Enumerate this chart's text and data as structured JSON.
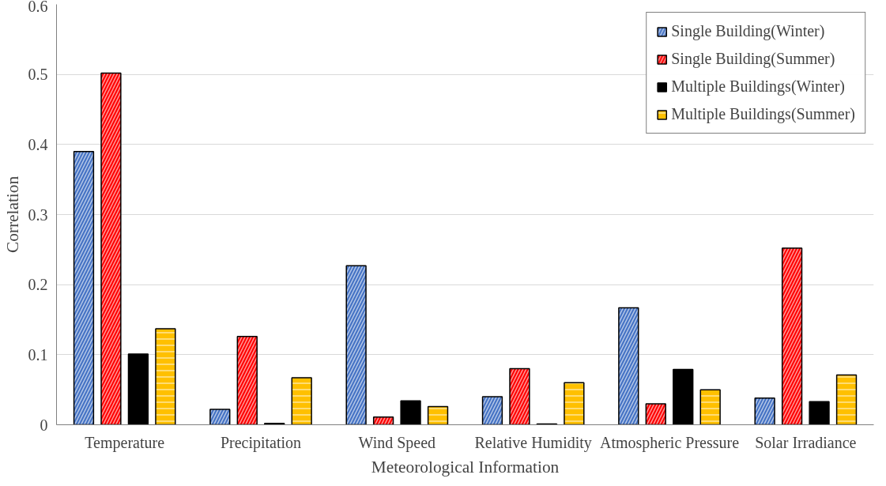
{
  "chart_data": {
    "type": "bar",
    "xlabel": "Meteorological Information",
    "ylabel": "Correlation",
    "categories": [
      "Temperature",
      "Precipitation",
      "Wind Speed",
      "Relative Humidity",
      "Atmospheric Pressure",
      "Solar Irradiance"
    ],
    "series": [
      {
        "name": "Single Building(Winter)",
        "color": "#4472c4",
        "values": [
          0.39,
          0.022,
          0.227,
          0.04,
          0.167,
          0.038
        ]
      },
      {
        "name": "Single Building(Summer)",
        "color": "#ff0000",
        "values": [
          0.502,
          0.126,
          0.011,
          0.08,
          0.03,
          0.252
        ]
      },
      {
        "name": "Multiple Buildings(Winter)",
        "color": "#000000",
        "values": [
          0.101,
          0.002,
          0.034,
          0.001,
          0.079,
          0.033
        ]
      },
      {
        "name": "Multiple Buildings(Summer)",
        "color": "#ffc000",
        "values": [
          0.137,
          0.067,
          0.026,
          0.06,
          0.05,
          0.071
        ]
      }
    ],
    "ylim": [
      0,
      0.6
    ],
    "yticks": [
      0,
      {
        "value": 0.1,
        "label": "0.1"
      },
      {
        "value": 0.2,
        "label": "0.2"
      },
      {
        "value": 0.3,
        "label": "0.3"
      },
      {
        "value": 0.4,
        "label": "0.4"
      },
      {
        "value": 0.5,
        "label": "0.5"
      },
      {
        "value": 0.6,
        "label": "0.6"
      }
    ],
    "grid": "y",
    "legend": "top right"
  }
}
